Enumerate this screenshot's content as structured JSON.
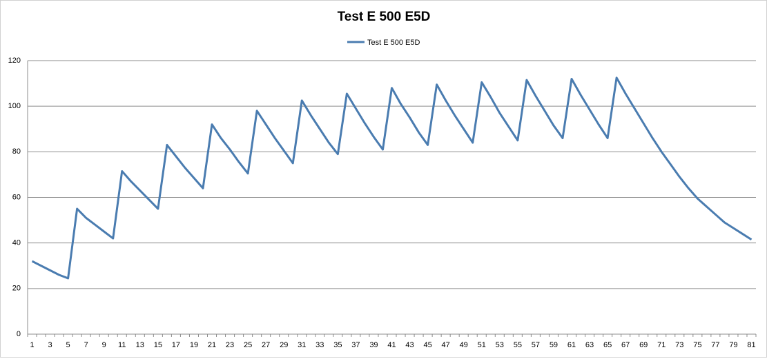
{
  "chart_data": {
    "type": "line",
    "title": "Test E 500 E5D",
    "categories": [
      1,
      null,
      3,
      null,
      5,
      null,
      7,
      null,
      9,
      null,
      11,
      null,
      13,
      null,
      15,
      null,
      17,
      null,
      19,
      null,
      21,
      null,
      23,
      null,
      25,
      null,
      27,
      null,
      29,
      null,
      31,
      null,
      33,
      null,
      35,
      null,
      37,
      null,
      39,
      null,
      41,
      null,
      43,
      null,
      45,
      null,
      47,
      null,
      49,
      null,
      51,
      null,
      53,
      null,
      55,
      null,
      57,
      null,
      59,
      null,
      61,
      null,
      63,
      null,
      65,
      null,
      67,
      null,
      69,
      null,
      71,
      null,
      73,
      null,
      75,
      null,
      77,
      null,
      79,
      null,
      81
    ],
    "series": [
      {
        "name": "Test E 500 E5D",
        "color": "#4a7cb0",
        "values": [
          32,
          30,
          28,
          26,
          24.5,
          55,
          51,
          48,
          45,
          42,
          71.5,
          67,
          63,
          59,
          55,
          83,
          78,
          73,
          68.5,
          64,
          92,
          86,
          81,
          75.5,
          70.5,
          98,
          92,
          86,
          80.5,
          75,
          102.5,
          96,
          90,
          84,
          79,
          105.5,
          99,
          92.5,
          86.5,
          81,
          108,
          101,
          95,
          88.5,
          83,
          109.5,
          102.5,
          96,
          90,
          84,
          110.5,
          104,
          97,
          91,
          85,
          111.5,
          104.5,
          98,
          91.5,
          86,
          112,
          105,
          98.5,
          92,
          86,
          112.5,
          105.5,
          99,
          92.5,
          86,
          80,
          74.5,
          69,
          64,
          59.5,
          56,
          52.5,
          49,
          46.5,
          44,
          41.5
        ]
      }
    ],
    "ylim": [
      0,
      120
    ],
    "yticks": [
      0,
      20,
      40,
      60,
      80,
      100,
      120
    ],
    "grid": true,
    "legend": "top"
  }
}
